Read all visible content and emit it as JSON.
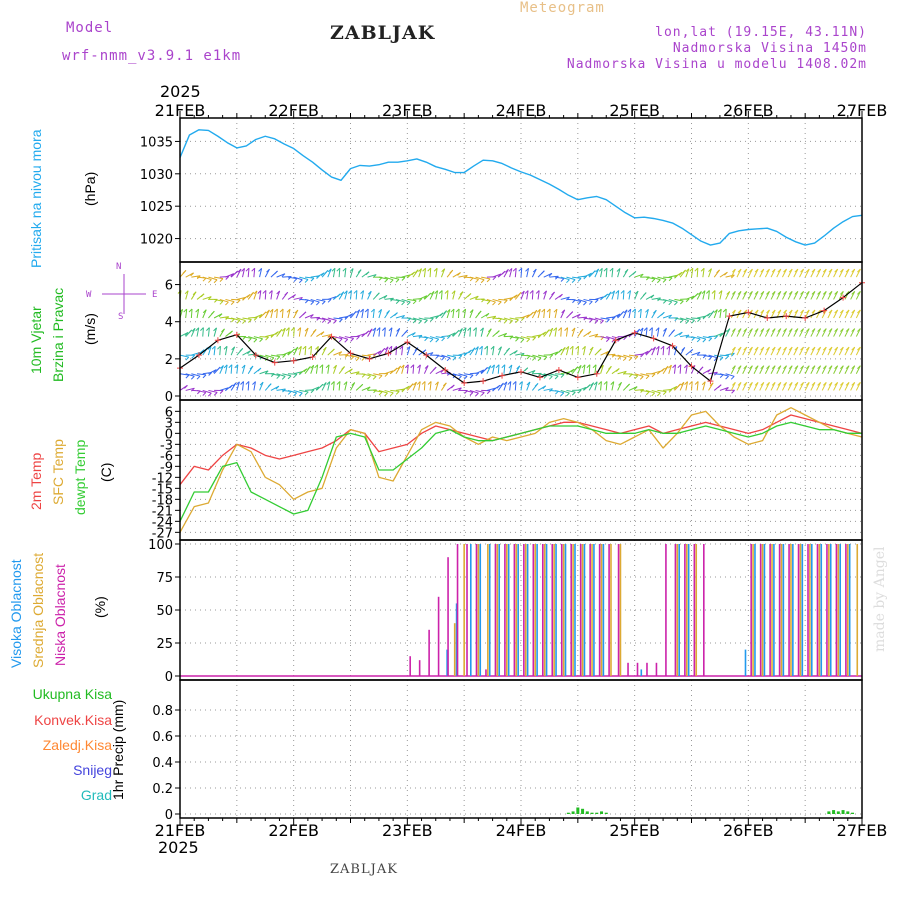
{
  "header": {
    "model_label": "Model",
    "model_name": "wrf-nmm_v3.9.1 e1km",
    "station": "ZABLJAK",
    "product": "Meteogram",
    "coords": "lon,lat (19.15E, 43.11N)",
    "altitude": "Nadmorska Visina 1450m",
    "model_altitude": "Nadmorska Visina u modelu 1408.02m",
    "footer_station": "ZABLJAK",
    "credit": "made by Angel"
  },
  "colors": {
    "pressure": "#22aaee",
    "temp_2m": "#ee4444",
    "temp_sfc": "#ddaa33",
    "dewpoint": "#33cc33",
    "high_cloud": "#2299ee",
    "mid_cloud": "#ddaa33",
    "low_cloud": "#cc22aa",
    "precip_total": "#22bb22",
    "precip_conv": "#ee4444",
    "precip_frozen": "#ff8833",
    "snow": "#4444dd",
    "hail": "#22bbbb",
    "purple_text": "#aa44cc"
  },
  "chart_data": [
    {
      "type": "line",
      "panel": "pressure",
      "ylabel_left": "Pritisak na nivou mora",
      "unit": "(hPa)",
      "ylim": [
        1017,
        1038
      ],
      "yticks": [
        1020,
        1025,
        1030,
        1035
      ],
      "x_start": "2025-02-21 00:00",
      "x_end": "2025-02-27 00:00",
      "x_labels": [
        "21FEB",
        "22FEB",
        "23FEB",
        "24FEB",
        "25FEB",
        "26FEB",
        "27FEB"
      ],
      "year_label": "2025",
      "series": [
        {
          "x_hours": [
            0,
            2,
            4,
            6,
            8,
            10,
            12,
            14,
            16,
            18,
            20,
            22,
            24,
            26,
            28,
            30,
            32,
            34,
            36,
            38,
            40,
            42,
            44,
            46,
            48,
            50,
            52,
            54,
            56,
            58,
            60,
            62,
            64,
            66,
            68,
            70,
            72,
            74,
            76,
            78,
            80,
            82,
            84,
            86,
            88,
            90,
            92,
            94,
            96,
            98,
            100,
            102,
            104,
            106,
            108,
            110,
            112,
            114,
            116,
            118,
            120,
            122,
            124,
            126,
            128,
            130,
            132,
            134,
            136,
            138,
            140,
            142,
            144
          ],
          "values": [
            1032.5,
            1036.0,
            1036.8,
            1036.7,
            1035.8,
            1034.8,
            1034.0,
            1034.3,
            1035.3,
            1035.8,
            1035.4,
            1034.6,
            1033.9,
            1032.8,
            1031.8,
            1030.6,
            1029.5,
            1029.0,
            1030.8,
            1031.3,
            1031.2,
            1031.4,
            1031.8,
            1031.8,
            1032.0,
            1032.3,
            1031.8,
            1031.1,
            1030.7,
            1030.2,
            1030.2,
            1031.2,
            1032.1,
            1032.0,
            1031.6,
            1030.9,
            1030.3,
            1029.8,
            1029.1,
            1028.4,
            1027.6,
            1026.7,
            1026.0,
            1026.3,
            1026.5,
            1026.0,
            1025.0,
            1024.0,
            1023.2,
            1023.3,
            1023.1,
            1022.8,
            1022.4,
            1021.6,
            1020.6,
            1019.6,
            1019.0,
            1019.3,
            1020.8,
            1021.2,
            1021.4,
            1021.5,
            1021.6,
            1021.1,
            1020.2,
            1019.5,
            1019.0,
            1019.3,
            1020.4,
            1021.6,
            1022.6,
            1023.4,
            1023.6
          ]
        }
      ]
    },
    {
      "type": "line",
      "panel": "wind",
      "ylabel_left": [
        "10m Vjetar",
        "Brzina i Pravac"
      ],
      "unit": "(m/s)",
      "compass": [
        "N",
        "W",
        "E",
        "S"
      ],
      "ylim": [
        0,
        7
      ],
      "yticks": [
        0,
        2,
        4,
        6
      ],
      "series": [
        {
          "name": "speed",
          "x_hours": [
            0,
            4,
            8,
            12,
            16,
            20,
            24,
            28,
            32,
            36,
            40,
            44,
            48,
            52,
            56,
            60,
            64,
            68,
            72,
            76,
            80,
            84,
            88,
            92,
            96,
            100,
            104,
            108,
            112,
            116,
            120,
            124,
            128,
            132,
            136,
            140,
            144
          ],
          "values": [
            1.5,
            2.2,
            3.0,
            3.3,
            2.2,
            1.8,
            1.9,
            2.1,
            3.2,
            2.3,
            2.0,
            2.3,
            2.9,
            2.2,
            1.4,
            0.7,
            0.8,
            1.1,
            1.3,
            1.0,
            1.4,
            1.0,
            1.2,
            3.0,
            3.4,
            3.1,
            2.7,
            1.6,
            0.8,
            4.3,
            4.5,
            4.2,
            4.3,
            4.2,
            4.6,
            5.3,
            6.1
          ]
        }
      ]
    },
    {
      "type": "line",
      "panel": "temperature",
      "ylabel_left": [
        "2m Temp",
        "SFC Temp",
        "dewpt Temp"
      ],
      "unit": "(C)",
      "ylim": [
        -28,
        8
      ],
      "yticks": [
        -27,
        -24,
        -21,
        -18,
        -15,
        -12,
        -9,
        -6,
        -3,
        0,
        3,
        6
      ],
      "x_hours": [
        0,
        3,
        6,
        9,
        12,
        15,
        18,
        21,
        24,
        27,
        30,
        33,
        36,
        39,
        42,
        45,
        48,
        51,
        54,
        57,
        60,
        63,
        66,
        69,
        72,
        75,
        78,
        81,
        84,
        87,
        90,
        93,
        96,
        99,
        102,
        105,
        108,
        111,
        114,
        117,
        120,
        123,
        126,
        129,
        132,
        135,
        138,
        141,
        144
      ],
      "series": [
        {
          "name": "2m Temp",
          "values": [
            -14,
            -9,
            -10,
            -6,
            -3,
            -4,
            -6,
            -7,
            -6,
            -5,
            -4,
            -2,
            1,
            0,
            -5,
            -4,
            -3,
            0,
            2,
            1,
            0,
            -1,
            -2,
            -1,
            0,
            1,
            2,
            3,
            3,
            2,
            1,
            0,
            1,
            2,
            0,
            1,
            2,
            3,
            2,
            1,
            0,
            1,
            3,
            5,
            4,
            3,
            2,
            1,
            0
          ]
        },
        {
          "name": "SFC Temp",
          "values": [
            -27,
            -20,
            -19,
            -10,
            -3,
            -5,
            -12,
            -14,
            -18,
            -16,
            -15,
            -4,
            1,
            0,
            -12,
            -13,
            -6,
            1,
            3,
            2,
            -1,
            -3,
            -1,
            -2,
            -1,
            0,
            3,
            4,
            3,
            1,
            -2,
            -3,
            -1,
            1,
            -4,
            0,
            5,
            6,
            2,
            -1,
            -3,
            -2,
            5,
            7,
            5,
            3,
            1,
            0,
            -1
          ]
        },
        {
          "name": "dewpt Temp",
          "values": [
            -24,
            -16,
            -16,
            -9,
            -8,
            -16,
            -18,
            -20,
            -22,
            -21,
            -12,
            -1,
            0,
            -1,
            -10,
            -10,
            -7,
            -4,
            0,
            1,
            -1,
            -2,
            -2,
            -1,
            0,
            1,
            2,
            2,
            2,
            1,
            0,
            0,
            0,
            1,
            0,
            0,
            1,
            2,
            1,
            0,
            -1,
            0,
            2,
            3,
            2,
            1,
            1,
            0,
            0
          ]
        }
      ]
    },
    {
      "type": "bar",
      "panel": "clouds",
      "ylabel_left": [
        "Visoka Oblacnost",
        "Srednja Oblacnost",
        "Niska Oblacnost"
      ],
      "unit": "(%)",
      "ylim": [
        0,
        100
      ],
      "yticks": [
        0,
        25,
        50,
        75,
        100
      ],
      "series": [
        {
          "name": "Visoka Oblacnost",
          "x_hours": [
            57,
            59,
            62,
            64,
            66,
            68,
            70,
            72,
            74,
            76,
            78,
            80,
            82,
            84,
            86,
            88,
            90,
            98,
            100,
            102,
            104,
            106,
            108,
            120,
            122,
            124,
            126,
            128,
            130,
            132,
            134,
            136,
            138,
            140,
            142
          ],
          "values": [
            20,
            55,
            100,
            100,
            100,
            100,
            100,
            100,
            100,
            100,
            100,
            100,
            100,
            100,
            100,
            100,
            100,
            5,
            0,
            0,
            0,
            100,
            100,
            20,
            100,
            100,
            100,
            100,
            100,
            100,
            100,
            100,
            100,
            100,
            100
          ]
        },
        {
          "name": "Srednja Oblacnost",
          "x_hours": [
            58,
            60,
            63,
            65,
            67,
            69,
            71,
            73,
            75,
            77,
            79,
            81,
            83,
            85,
            87,
            89,
            91,
            93,
            105,
            107,
            109,
            121,
            123,
            125,
            127,
            129,
            131,
            133,
            135,
            137,
            139,
            141,
            143
          ],
          "values": [
            40,
            100,
            100,
            100,
            100,
            100,
            100,
            100,
            100,
            100,
            100,
            100,
            100,
            100,
            100,
            100,
            100,
            100,
            100,
            100,
            100,
            100,
            100,
            100,
            100,
            100,
            100,
            100,
            100,
            100,
            100,
            100,
            100
          ]
        },
        {
          "name": "Niska Oblacnost",
          "x_hours": [
            48,
            50,
            52,
            54,
            56,
            58,
            60,
            62,
            64,
            66,
            68,
            70,
            72,
            74,
            76,
            78,
            80,
            82,
            84,
            86,
            88,
            90,
            92,
            94,
            96,
            98,
            100,
            102,
            104,
            106,
            108,
            110,
            120,
            122,
            124,
            126,
            128,
            130,
            132,
            134,
            136,
            138,
            140
          ],
          "values": [
            15,
            12,
            35,
            60,
            90,
            100,
            100,
            100,
            5,
            100,
            100,
            100,
            100,
            100,
            100,
            100,
            100,
            100,
            100,
            100,
            100,
            100,
            100,
            10,
            10,
            10,
            10,
            100,
            100,
            100,
            100,
            100,
            100,
            100,
            100,
            100,
            100,
            100,
            100,
            100,
            100,
            100,
            100
          ]
        }
      ]
    },
    {
      "type": "bar",
      "panel": "precipitation",
      "ylabel_left": [
        "Ukupna Kisa",
        "Konvek.Kisa",
        "Zaledj.Kisa",
        "Snijeg",
        "Grad"
      ],
      "unit": "1hr Precip (mm)",
      "ylim": [
        0,
        1.0
      ],
      "yticks": [
        0,
        0.2,
        0.4,
        0.6,
        0.8
      ],
      "series": [
        {
          "name": "Ukupna Kisa",
          "x_hours": [
            82,
            83,
            84,
            85,
            86,
            87,
            88,
            89,
            90,
            137,
            138,
            139,
            140,
            141,
            142
          ],
          "values": [
            0.01,
            0.02,
            0.05,
            0.04,
            0.02,
            0.01,
            0.01,
            0.02,
            0.01,
            0.02,
            0.03,
            0.02,
            0.03,
            0.02,
            0.01
          ]
        }
      ]
    }
  ]
}
